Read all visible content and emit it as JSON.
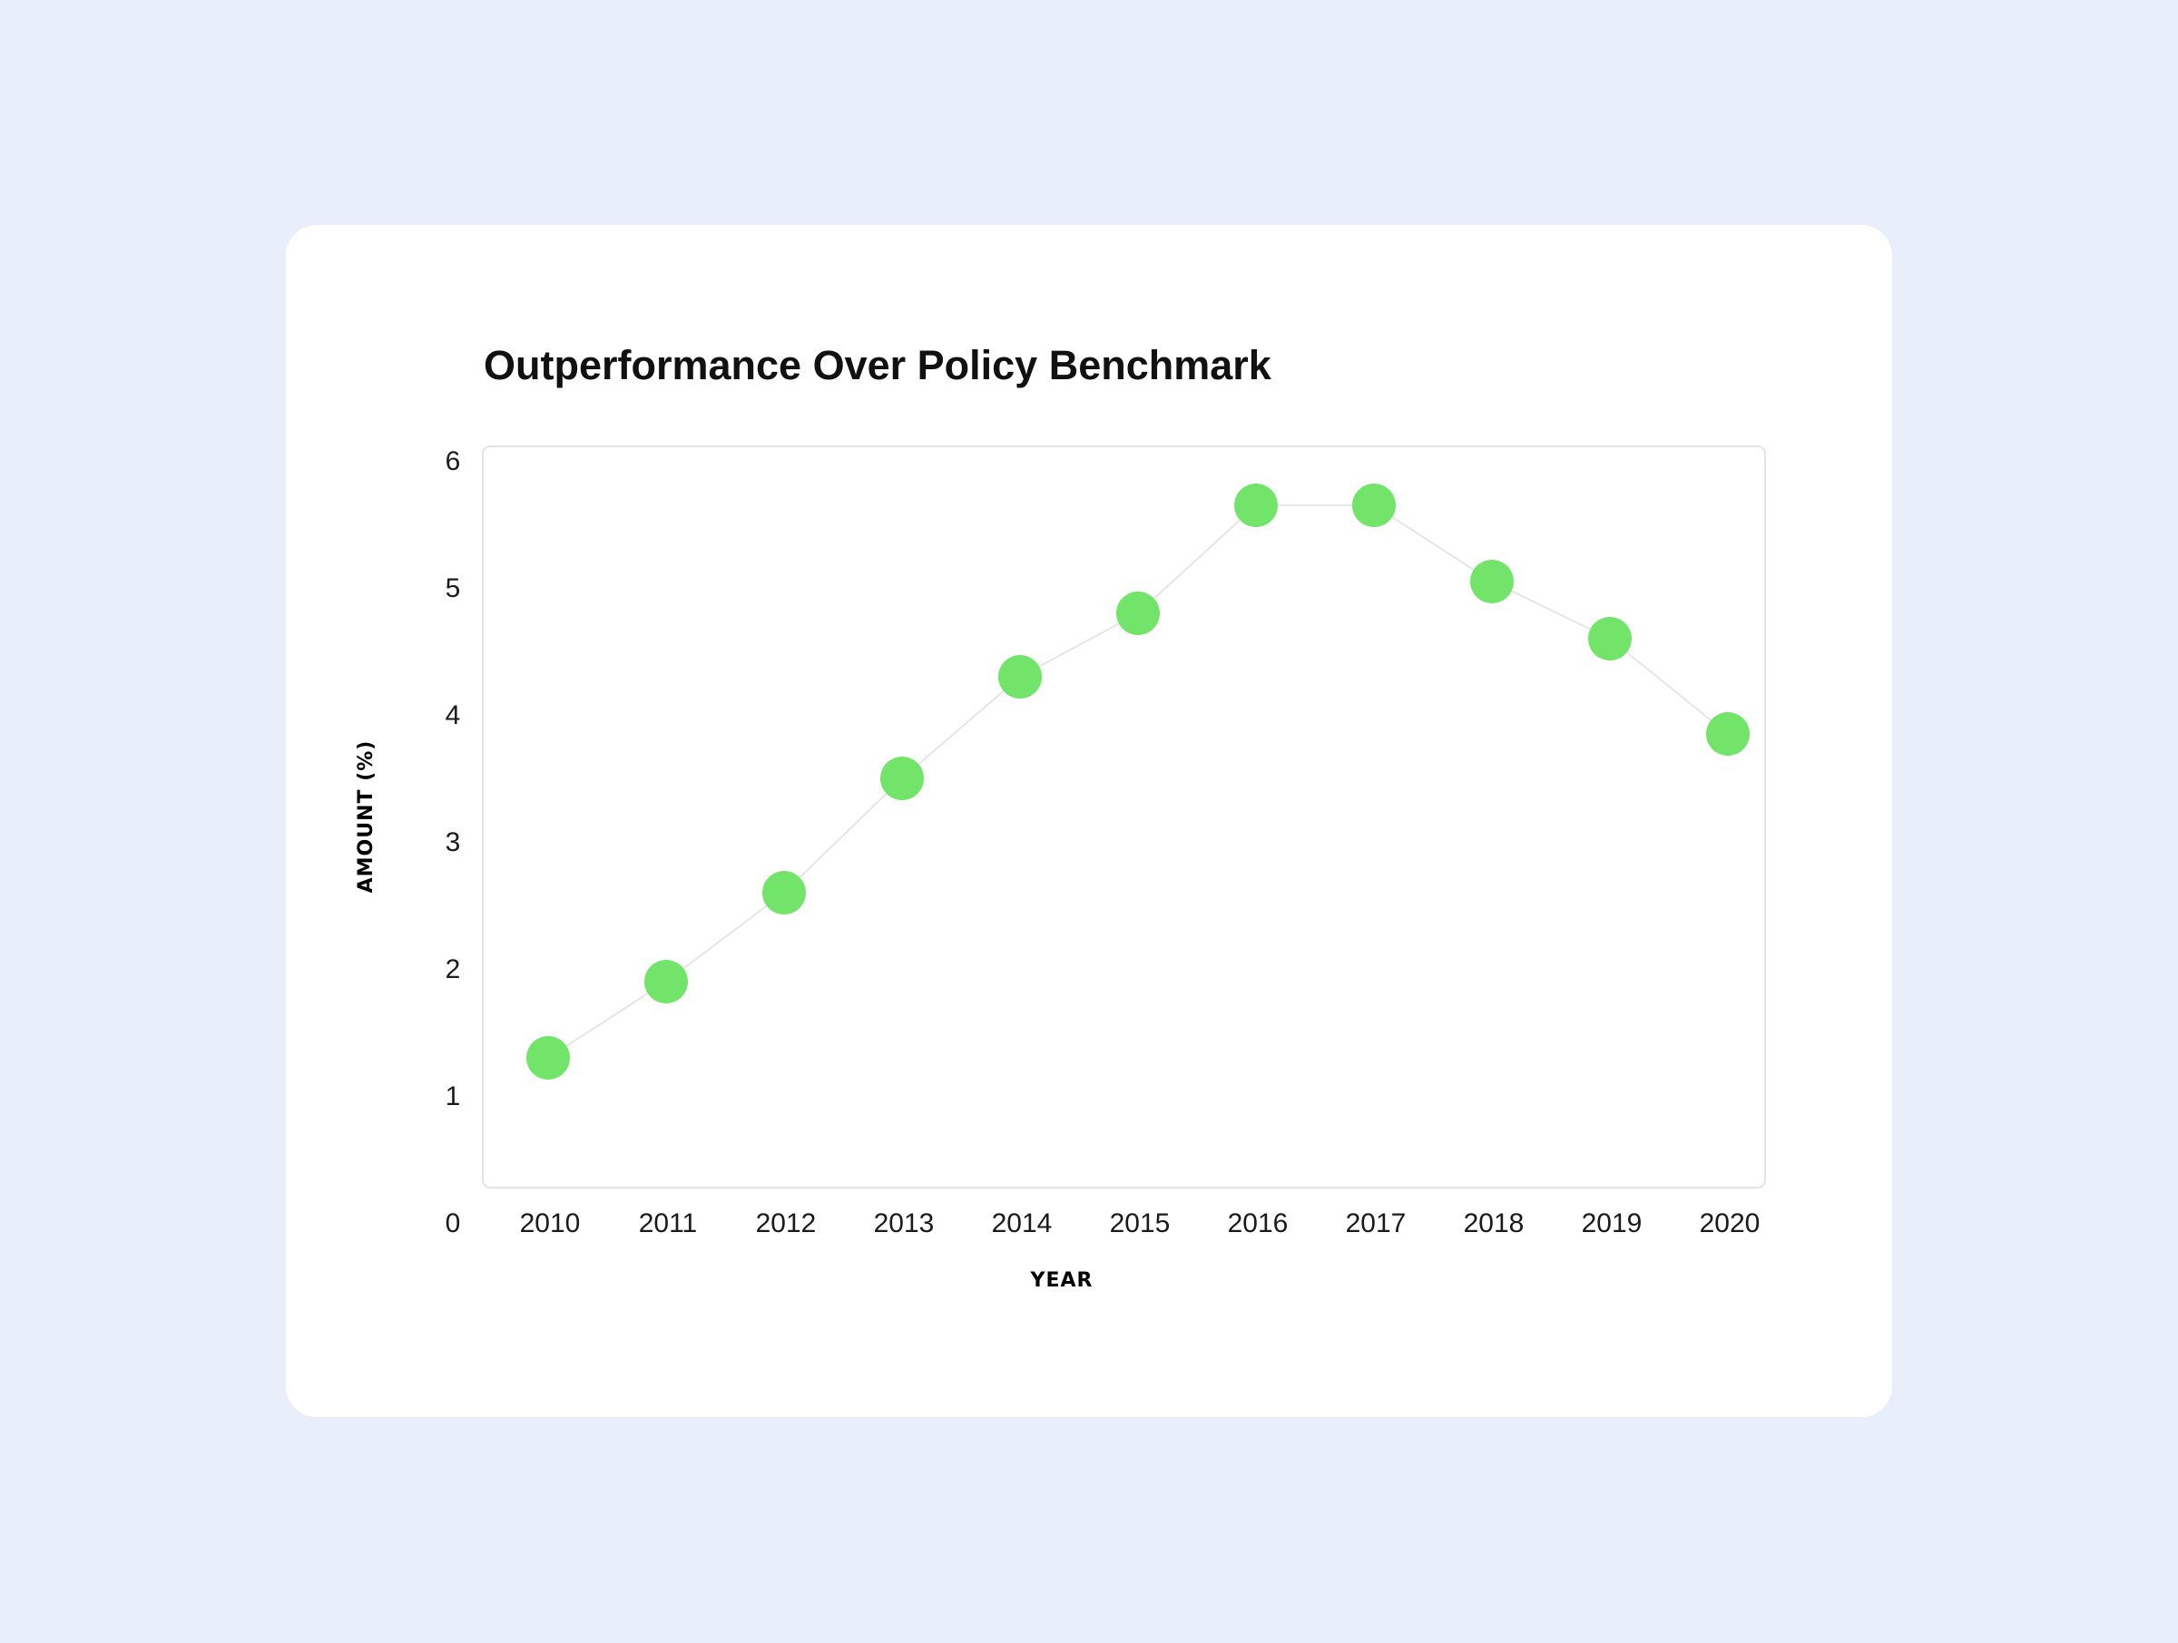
{
  "chart_data": {
    "type": "scatter",
    "title": "Outperformance Over Policy Benchmark",
    "xlabel": "YEAR",
    "ylabel": "AMOUNT (%)",
    "categories": [
      "2010",
      "2011",
      "2012",
      "2013",
      "2014",
      "2015",
      "2016",
      "2017",
      "2018",
      "2019",
      "2020"
    ],
    "series": [
      {
        "values": [
          1.3,
          1.9,
          2.6,
          3.5,
          4.3,
          4.8,
          5.65,
          5.65,
          5.05,
          4.6,
          3.85
        ],
        "color": "#72e46a",
        "connector_color": "#e6e6e6"
      }
    ],
    "yticks": [
      0,
      1,
      2,
      3,
      4,
      5,
      6
    ],
    "ylim": [
      0,
      6
    ],
    "grid": false
  },
  "colors": {
    "background": "#e8eefa",
    "card": "#ffffff",
    "plot_border": "#e4e4e4",
    "marker": "#72e46a"
  }
}
